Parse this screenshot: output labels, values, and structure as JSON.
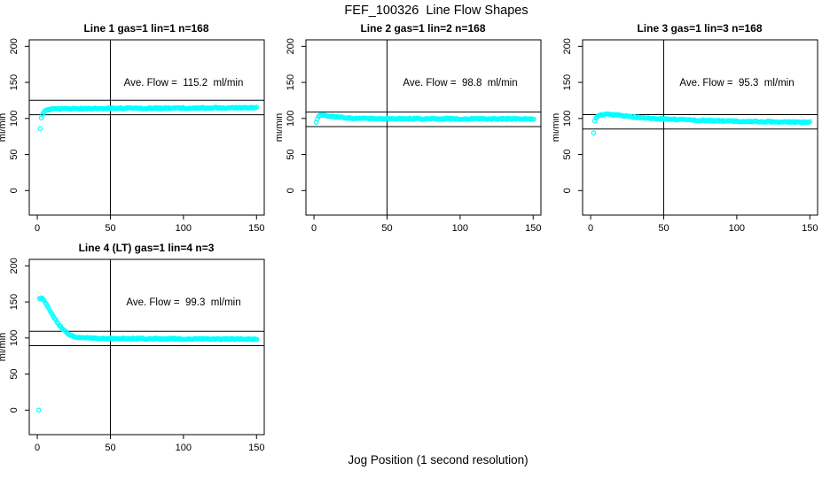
{
  "figure": {
    "title": "FEF_100326  Line Flow Shapes",
    "xlabel": "Jog Position (1 second resolution)",
    "background": "#ffffff",
    "axis_color": "#000000",
    "marker_color": "#00FFFF"
  },
  "chart_data": [
    {
      "type": "scatter",
      "title": "Line 1 gas=1 lin=1 n=168",
      "annotation": "Ave. Flow =  115.2  ml/min",
      "ave_flow_ml_min": 115.2,
      "n": 168,
      "ylabel": "ml/min",
      "x_ticks": [
        0,
        50,
        100,
        150
      ],
      "y_ticks": [
        0,
        50,
        100,
        150,
        200
      ],
      "xlim": [
        -5.5,
        155.3
      ],
      "ylim": [
        -34,
        209
      ],
      "vline_x": 50,
      "hlines": [
        125.2,
        105.2
      ],
      "grid": false,
      "points": [
        [
          2,
          86
        ],
        [
          2.6,
          99
        ],
        [
          3.2,
          104
        ],
        [
          4,
          107.5
        ],
        [
          5,
          110
        ],
        [
          6,
          111.3
        ],
        [
          8,
          112.4
        ],
        [
          10,
          112.9
        ],
        [
          15,
          113.2
        ],
        [
          25,
          113.4
        ],
        [
          40,
          113.8
        ],
        [
          60,
          114.0
        ],
        [
          80,
          114.2
        ],
        [
          100,
          114.4
        ],
        [
          120,
          114.6
        ],
        [
          150.5,
          115.0
        ]
      ],
      "outliers": []
    },
    {
      "type": "scatter",
      "title": "Line 2 gas=1 lin=2 n=168",
      "annotation": "Ave. Flow =  98.8  ml/min",
      "ave_flow_ml_min": 98.8,
      "n": 168,
      "ylabel": "ml/min",
      "x_ticks": [
        0,
        50,
        100,
        150
      ],
      "y_ticks": [
        0,
        50,
        100,
        150,
        200
      ],
      "xlim": [
        -5.5,
        155.3
      ],
      "ylim": [
        -34,
        209
      ],
      "vline_x": 50,
      "hlines": [
        108.8,
        88.8
      ],
      "grid": false,
      "points": [
        [
          1.5,
          94.5
        ],
        [
          2.2,
          99
        ],
        [
          3,
          102.5
        ],
        [
          4,
          104.3
        ],
        [
          5,
          105
        ],
        [
          6.5,
          104.9
        ],
        [
          8,
          104.4
        ],
        [
          10,
          103.6
        ],
        [
          13,
          102.6
        ],
        [
          16,
          101.9
        ],
        [
          20,
          101.1
        ],
        [
          25,
          100.6
        ],
        [
          30,
          100.2
        ],
        [
          40,
          99.9
        ],
        [
          60,
          99.7
        ],
        [
          80,
          99.6
        ],
        [
          100,
          99.5
        ],
        [
          120,
          99.4
        ],
        [
          150.5,
          99.3
        ]
      ],
      "outliers": []
    },
    {
      "type": "scatter",
      "title": "Line 3 gas=1 lin=3 n=168",
      "annotation": "Ave. Flow =  95.3  ml/min",
      "ave_flow_ml_min": 95.3,
      "n": 168,
      "ylabel": "ml/min",
      "x_ticks": [
        0,
        50,
        100,
        150
      ],
      "y_ticks": [
        0,
        50,
        100,
        150,
        200
      ],
      "xlim": [
        -5.5,
        155.3
      ],
      "ylim": [
        -34,
        209
      ],
      "vline_x": 50,
      "hlines": [
        105.3,
        85.3
      ],
      "grid": false,
      "points": [
        [
          2.8,
          96.5
        ],
        [
          3.6,
          100.5
        ],
        [
          5,
          103.5
        ],
        [
          7,
          105
        ],
        [
          10,
          105.4
        ],
        [
          14,
          105.2
        ],
        [
          18,
          104.5
        ],
        [
          22,
          103.6
        ],
        [
          27,
          102.5
        ],
        [
          33,
          101.3
        ],
        [
          40,
          100.3
        ],
        [
          50,
          99.2
        ],
        [
          60,
          98.4
        ],
        [
          80,
          97.2
        ],
        [
          100,
          96.2
        ],
        [
          120,
          95.5
        ],
        [
          150.5,
          94.8
        ]
      ],
      "outliers": [
        [
          2,
          80
        ]
      ]
    },
    {
      "type": "scatter",
      "title": "Line 4 (LT) gas=1 lin=4 n=3",
      "annotation": "Ave. Flow =  99.3  ml/min",
      "ave_flow_ml_min": 99.3,
      "n": 3,
      "ylabel": "ml/min",
      "x_ticks": [
        0,
        50,
        100,
        150
      ],
      "y_ticks": [
        0,
        50,
        100,
        150,
        200
      ],
      "xlim": [
        -5.5,
        155.3
      ],
      "ylim": [
        -34,
        209
      ],
      "vline_x": 50,
      "hlines": [
        109.3,
        89.3
      ],
      "grid": false,
      "points": [
        [
          1.5,
          154.5
        ],
        [
          2.5,
          155.8
        ],
        [
          3.5,
          155
        ],
        [
          4.5,
          152.5
        ],
        [
          5.5,
          149.5
        ],
        [
          6.5,
          146
        ],
        [
          7.5,
          142.5
        ],
        [
          8.5,
          139
        ],
        [
          9.5,
          135.5
        ],
        [
          10.5,
          132
        ],
        [
          11.5,
          128.5
        ],
        [
          12.5,
          125.3
        ],
        [
          13.5,
          122.2
        ],
        [
          14.5,
          119.3
        ],
        [
          15.5,
          116.6
        ],
        [
          16.5,
          114.2
        ],
        [
          17.5,
          112
        ],
        [
          18.5,
          110
        ],
        [
          19.5,
          108.2
        ],
        [
          21,
          105.9
        ],
        [
          23,
          103.7
        ],
        [
          25,
          102.3
        ],
        [
          27,
          101.4
        ],
        [
          29,
          100.8
        ],
        [
          31,
          100.4
        ],
        [
          34,
          100.1
        ],
        [
          38,
          99.8
        ],
        [
          45,
          99.5
        ],
        [
          55,
          99.3
        ],
        [
          70,
          99.1
        ],
        [
          90,
          98.9
        ],
        [
          110,
          98.7
        ],
        [
          130,
          98.5
        ],
        [
          150.5,
          98.3
        ]
      ],
      "outliers": [
        [
          1,
          0
        ]
      ]
    }
  ]
}
